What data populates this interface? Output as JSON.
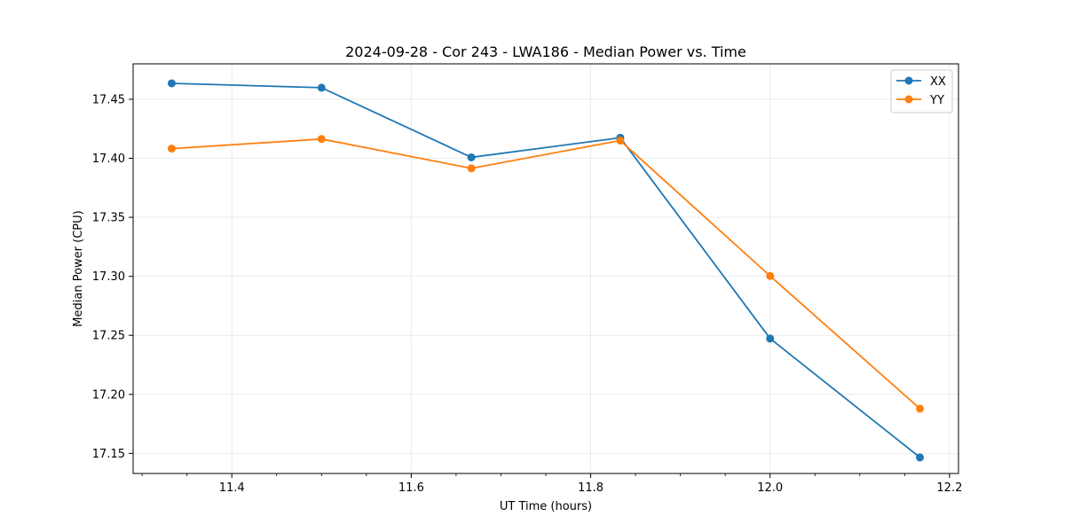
{
  "chart_data": {
    "type": "line",
    "title": "2024-09-28 - Cor 243 - LWA186 - Median Power vs. Time",
    "xlabel": "UT Time (hours)",
    "ylabel": "Median Power (CPU)",
    "xlim": [
      11.29,
      12.21
    ],
    "ylim": [
      17.133,
      17.48
    ],
    "xticks": [
      11.4,
      11.6,
      11.8,
      12.0,
      12.2
    ],
    "xtick_labels": [
      "11.4",
      "11.6",
      "11.8",
      "12.0",
      "12.2"
    ],
    "x_minor_step": 0.05,
    "yticks": [
      17.15,
      17.2,
      17.25,
      17.3,
      17.35,
      17.4,
      17.45
    ],
    "ytick_labels": [
      "17.15",
      "17.20",
      "17.25",
      "17.30",
      "17.35",
      "17.40",
      "17.45"
    ],
    "grid": true,
    "legend_position": "top-right",
    "x": [
      11.333,
      11.5,
      11.667,
      11.833,
      12.0,
      12.167
    ],
    "series": [
      {
        "name": "XX",
        "color": "#1f77b4",
        "marker": "circle",
        "values": [
          17.4635,
          17.4598,
          17.4008,
          17.4174,
          17.2473,
          17.1466
        ]
      },
      {
        "name": "YY",
        "color": "#ff7f0e",
        "marker": "circle",
        "values": [
          17.4082,
          17.4163,
          17.3915,
          17.415,
          17.3003,
          17.1879
        ]
      }
    ]
  }
}
